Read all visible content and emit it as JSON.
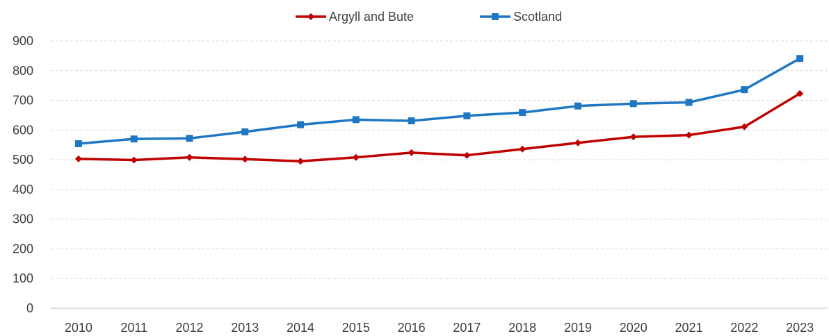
{
  "chart_data": {
    "type": "line",
    "title": "",
    "xlabel": "",
    "ylabel": "",
    "categories": [
      "2010",
      "2011",
      "2012",
      "2013",
      "2014",
      "2015",
      "2016",
      "2017",
      "2018",
      "2019",
      "2020",
      "2021",
      "2022",
      "2023"
    ],
    "ylim": [
      0,
      900
    ],
    "yticks": [
      0,
      100,
      200,
      300,
      400,
      500,
      600,
      700,
      800,
      900
    ],
    "grid": "horizontal dashed",
    "legend_position": "top-center",
    "series": [
      {
        "name": "Argyll and Bute",
        "color": "#c00000",
        "marker": "diamond",
        "values": [
          503,
          499,
          508,
          502,
          495,
          508,
          524,
          515,
          536,
          557,
          577,
          583,
          611,
          723
        ]
      },
      {
        "name": "Scotland",
        "color": "#1f77c4",
        "marker": "square",
        "values": [
          554,
          570,
          572,
          594,
          618,
          635,
          631,
          648,
          659,
          681,
          689,
          693,
          736,
          841
        ]
      }
    ]
  }
}
